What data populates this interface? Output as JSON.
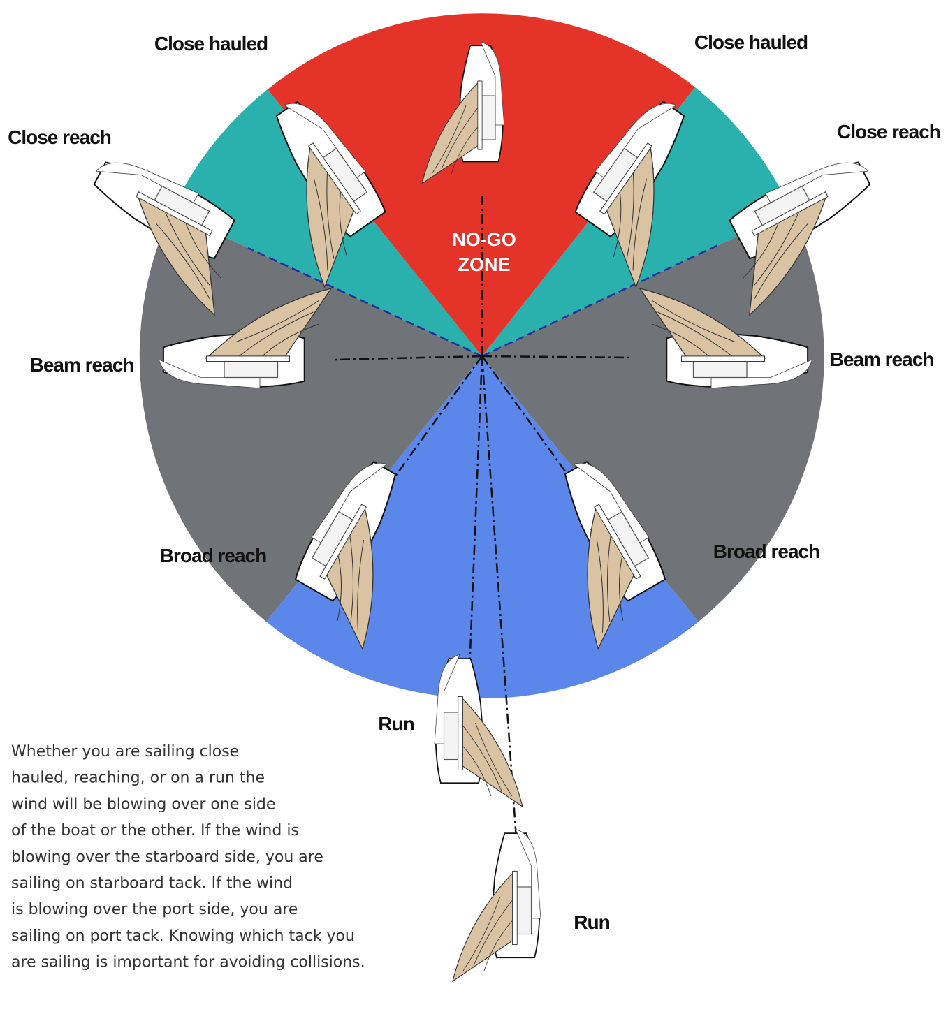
{
  "labels": {
    "close_hauled_left": "Close hauled",
    "close_hauled_right": "Close hauled",
    "close_reach_left": "Close reach",
    "close_reach_right": "Close reach",
    "beam_reach_left": "Beam reach",
    "beam_reach_right": "Beam reach",
    "broad_reach_left": "Broad reach",
    "broad_reach_right": "Broad reach",
    "run_upper": "Run",
    "run_lower": "Run"
  },
  "zone": {
    "line1": "NO-GO",
    "line2": "ZONE"
  },
  "paragraph": [
    "Whether you are sailing close",
    "hauled, reaching, or on a run the",
    "wind will be blowing over one side",
    "of the boat or the other. If the wind is",
    "blowing over the starboard side, you are",
    "sailing on starboard tack. If the wind",
    "is blowing over the port side, you are",
    "sailing on port tack. Knowing which tack you",
    "are sailing is important for avoiding collisions."
  ]
}
